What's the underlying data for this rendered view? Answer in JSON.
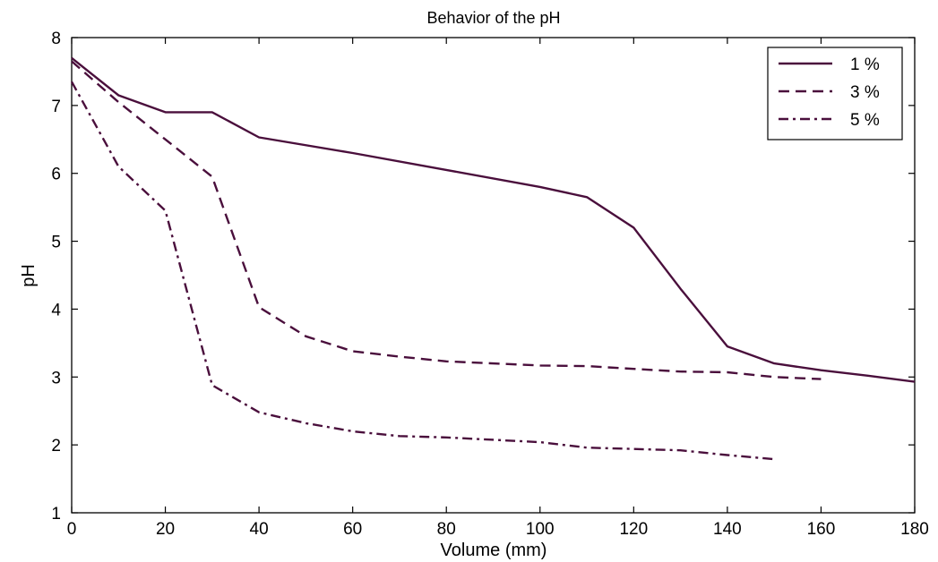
{
  "chart_data": {
    "type": "line",
    "title": "Behavior of the pH",
    "xlabel": "Volume (mm)",
    "ylabel": "pH",
    "xlim": [
      0,
      180
    ],
    "ylim": [
      1,
      8
    ],
    "xticks": [
      0,
      20,
      40,
      60,
      80,
      100,
      120,
      140,
      160,
      180
    ],
    "yticks": [
      1,
      2,
      3,
      4,
      5,
      6,
      7,
      8
    ],
    "grid": false,
    "legend_position": "top-right",
    "line_color": "#4a0f3c",
    "series": [
      {
        "name": "1 %",
        "style": "solid",
        "x": [
          0,
          10,
          20,
          30,
          40,
          60,
          80,
          100,
          110,
          120,
          130,
          140,
          150,
          160,
          170,
          180
        ],
        "y": [
          7.7,
          7.15,
          6.9,
          6.9,
          6.53,
          6.3,
          6.05,
          5.8,
          5.65,
          5.2,
          4.3,
          3.45,
          3.2,
          3.1,
          3.02,
          2.93
        ]
      },
      {
        "name": "3 %",
        "style": "dashed",
        "x": [
          0,
          10,
          20,
          30,
          40,
          50,
          60,
          70,
          80,
          100,
          110,
          120,
          130,
          140,
          150,
          160
        ],
        "y": [
          7.65,
          7.05,
          6.5,
          5.95,
          4.03,
          3.6,
          3.38,
          3.3,
          3.23,
          3.17,
          3.16,
          3.12,
          3.08,
          3.07,
          3.0,
          2.97
        ]
      },
      {
        "name": "5 %",
        "style": "dashdot",
        "x": [
          0,
          10,
          20,
          30,
          40,
          50,
          60,
          70,
          80,
          100,
          110,
          120,
          130,
          140,
          150
        ],
        "y": [
          7.35,
          6.1,
          5.45,
          2.88,
          2.48,
          2.32,
          2.2,
          2.13,
          2.11,
          2.04,
          1.96,
          1.94,
          1.92,
          1.85,
          1.79
        ]
      }
    ]
  }
}
